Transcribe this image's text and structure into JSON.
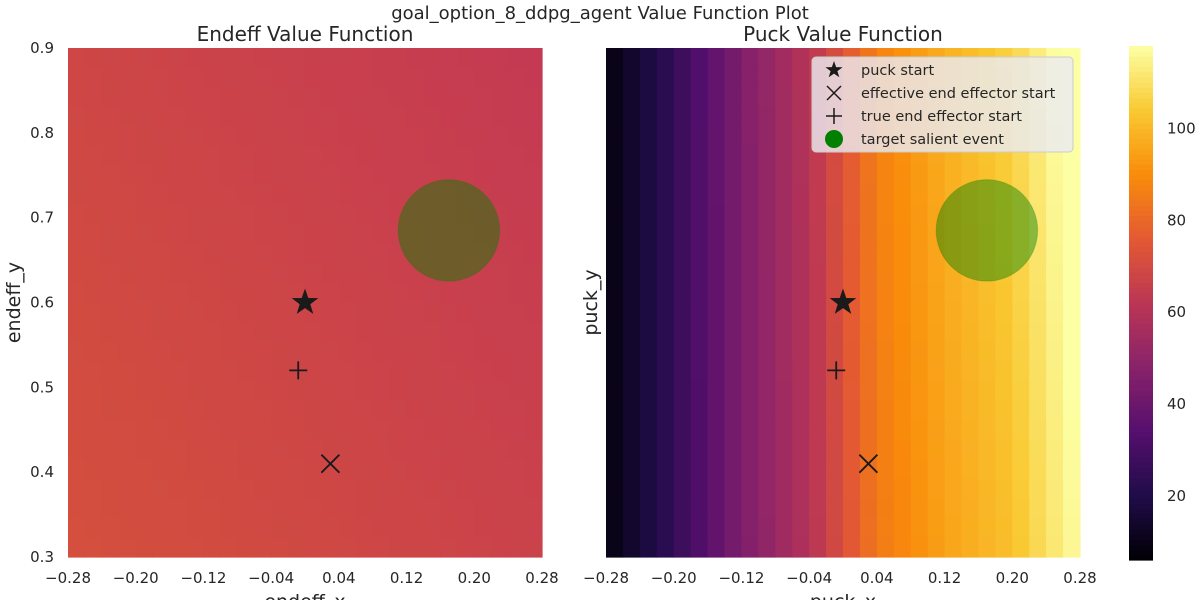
{
  "figure": {
    "suptitle": "goal_option_8_ddpg_agent Value Function Plot"
  },
  "chart_data": [
    {
      "type": "heatmap",
      "title": "Endeff Value Function",
      "xlabel": "endeff_x",
      "ylabel": "endeff_y",
      "xlim": [
        -0.28,
        0.28
      ],
      "ylim": [
        0.3,
        0.9
      ],
      "xticks": [
        "−0.28",
        "−0.20",
        "−0.12",
        "−0.04",
        "0.04",
        "0.12",
        "0.20",
        "0.28"
      ],
      "xtick_values": [
        -0.28,
        -0.2,
        -0.12,
        -0.04,
        0.04,
        0.12,
        0.2,
        0.28
      ],
      "yticks": [
        "0.3",
        "0.4",
        "0.5",
        "0.6",
        "0.7",
        "0.8",
        "0.9"
      ],
      "ytick_values": [
        0.3,
        0.4,
        0.5,
        0.6,
        0.7,
        0.8,
        0.9
      ],
      "grid": false,
      "field": {
        "description": "nearly uniform value field",
        "colors": {
          "low_bottom_left": "#d44f3d",
          "high_top_right": "#c43a53"
        }
      },
      "markers": [
        {
          "label": "puck start",
          "symbol": "star",
          "x": 0.0,
          "y": 0.6
        },
        {
          "label": "effective end effector start",
          "symbol": "x",
          "x": 0.03,
          "y": 0.41
        },
        {
          "label": "true end effector start",
          "symbol": "plus",
          "x": -0.008,
          "y": 0.52
        },
        {
          "label": "target salient event",
          "symbol": "circle",
          "x": 0.17,
          "y": 0.685,
          "radius": 0.06,
          "color": "#008000",
          "alpha": 0.45
        }
      ]
    },
    {
      "type": "heatmap",
      "title": "Puck Value Function",
      "xlabel": "puck_x",
      "ylabel": "puck_y",
      "xlim": [
        -0.28,
        0.28
      ],
      "ylim": [
        0.3,
        0.9
      ],
      "xticks": [
        "−0.28",
        "−0.20",
        "−0.12",
        "−0.04",
        "0.04",
        "0.12",
        "0.20",
        "0.28"
      ],
      "xtick_values": [
        -0.28,
        -0.2,
        -0.12,
        -0.04,
        0.04,
        0.12,
        0.2,
        0.28
      ],
      "yticks": [],
      "grid": false,
      "colormap": "inferno",
      "field": {
        "description": "value increases with puck_x",
        "value_at_x": [
          {
            "x": -0.28,
            "value": 8
          },
          {
            "x": -0.2,
            "value": 25
          },
          {
            "x": -0.12,
            "value": 45
          },
          {
            "x": -0.04,
            "value": 60
          },
          {
            "x": 0.04,
            "value": 85
          },
          {
            "x": 0.12,
            "value": 95
          },
          {
            "x": 0.2,
            "value": 102
          },
          {
            "x": 0.28,
            "value": 118
          }
        ],
        "top_right_boost": 6
      },
      "markers": [
        {
          "label": "puck start",
          "symbol": "star",
          "x": 0.0,
          "y": 0.6
        },
        {
          "label": "effective end effector start",
          "symbol": "x",
          "x": 0.03,
          "y": 0.41
        },
        {
          "label": "true end effector start",
          "symbol": "plus",
          "x": -0.008,
          "y": 0.52
        },
        {
          "label": "target salient event",
          "symbol": "circle",
          "x": 0.17,
          "y": 0.685,
          "radius": 0.06,
          "color": "#008000",
          "alpha": 0.45
        }
      ],
      "legend": {
        "placement": "top-right",
        "entries": [
          {
            "label": "puck start",
            "symbol": "star"
          },
          {
            "label": "effective end effector start",
            "symbol": "x"
          },
          {
            "label": "true end effector start",
            "symbol": "plus"
          },
          {
            "label": "target salient event",
            "symbol": "circle",
            "color": "#008000"
          }
        ]
      }
    }
  ],
  "colorbar": {
    "colormap": "inferno",
    "vmin": 6,
    "vmax": 118,
    "ticks": [
      "20",
      "40",
      "60",
      "80",
      "100"
    ],
    "tick_values": [
      20,
      40,
      60,
      80,
      100
    ]
  }
}
